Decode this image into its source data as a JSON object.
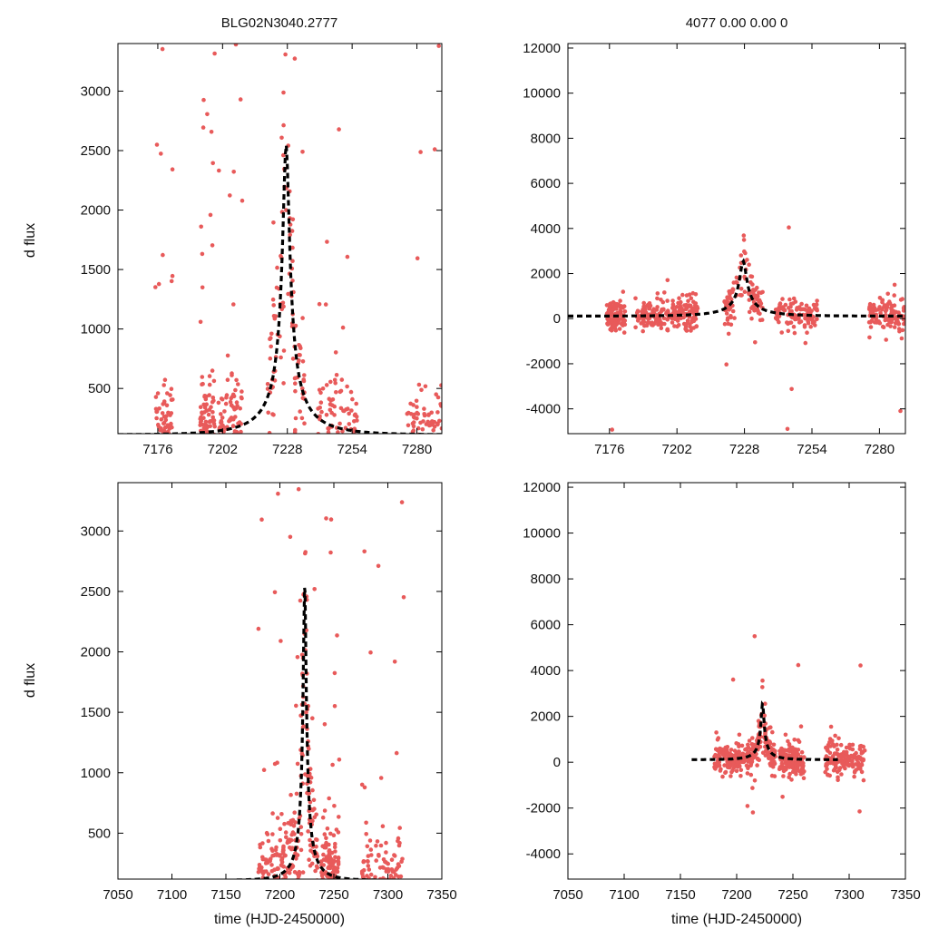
{
  "titles": {
    "left": "BLG02N3040.2777",
    "right": "4077  0.00  0.00  0"
  },
  "labels": {
    "ylabel": "d flux",
    "xlabel": "time (HJD-2450000)"
  },
  "colors": {
    "points": "#e85a5a",
    "fit": "#000000"
  },
  "chart_data": [
    {
      "id": "top-left",
      "type": "scatter",
      "xlim": [
        7160,
        7290
      ],
      "ylim": [
        120,
        3400
      ],
      "xticks": [
        7176,
        7202,
        7228,
        7254,
        7280
      ],
      "yticks": [
        500,
        1000,
        1500,
        2000,
        2500,
        3000
      ],
      "model": {
        "t0": 7227.5,
        "peak": 2550,
        "base": 110,
        "u0": 0.06,
        "tE": 22,
        "t_start": 7160,
        "t_end": 7290
      },
      "seasons": [
        [
          7175,
          7182
        ],
        [
          7193,
          7199
        ],
        [
          7200,
          7210
        ],
        [
          7220,
          7235
        ],
        [
          7240,
          7256
        ],
        [
          7276,
          7290
        ]
      ],
      "ylabel": "d flux"
    },
    {
      "id": "top-right",
      "type": "scatter",
      "xlim": [
        7160,
        7290
      ],
      "ylim": [
        -5100,
        12200
      ],
      "xticks": [
        7176,
        7202,
        7228,
        7254,
        7280
      ],
      "yticks": [
        -4000,
        -2000,
        0,
        2000,
        4000,
        6000,
        8000,
        10000,
        12000
      ],
      "model": {
        "t0": 7227.5,
        "peak": 2550,
        "base": 110,
        "u0": 0.06,
        "tE": 22,
        "t_start": 7160,
        "t_end": 7290
      },
      "seasons": [
        [
          7175,
          7182
        ],
        [
          7186,
          7199
        ],
        [
          7200,
          7210
        ],
        [
          7220,
          7235
        ],
        [
          7240,
          7256
        ],
        [
          7276,
          7290
        ]
      ]
    },
    {
      "id": "bottom-left",
      "type": "scatter",
      "xlim": [
        7050,
        7350
      ],
      "ylim": [
        120,
        3400
      ],
      "xticks": [
        7050,
        7100,
        7150,
        7200,
        7250,
        7300,
        7350
      ],
      "yticks": [
        500,
        1000,
        1500,
        2000,
        2500,
        3000
      ],
      "model": {
        "t0": 7223,
        "peak": 2550,
        "base": 110,
        "u0": 0.06,
        "tE": 22,
        "t_start": 7160,
        "t_end": 7290
      },
      "seasons": [
        [
          7180,
          7210
        ],
        [
          7210,
          7235
        ],
        [
          7238,
          7255
        ],
        [
          7276,
          7315
        ]
      ],
      "xlabel": "time (HJD-2450000)",
      "ylabel": "d flux"
    },
    {
      "id": "bottom-right",
      "type": "scatter",
      "xlim": [
        7050,
        7350
      ],
      "ylim": [
        -5100,
        12200
      ],
      "xticks": [
        7050,
        7100,
        7150,
        7200,
        7250,
        7300,
        7350
      ],
      "yticks": [
        -4000,
        -2000,
        0,
        2000,
        4000,
        6000,
        8000,
        10000,
        12000
      ],
      "model": {
        "t0": 7223,
        "peak": 2550,
        "base": 110,
        "u0": 0.06,
        "tE": 22,
        "t_start": 7160,
        "t_end": 7290
      },
      "seasons": [
        [
          7180,
          7210
        ],
        [
          7210,
          7235
        ],
        [
          7238,
          7260
        ],
        [
          7278,
          7315
        ]
      ],
      "xlabel": "time (HJD-2450000)"
    }
  ]
}
